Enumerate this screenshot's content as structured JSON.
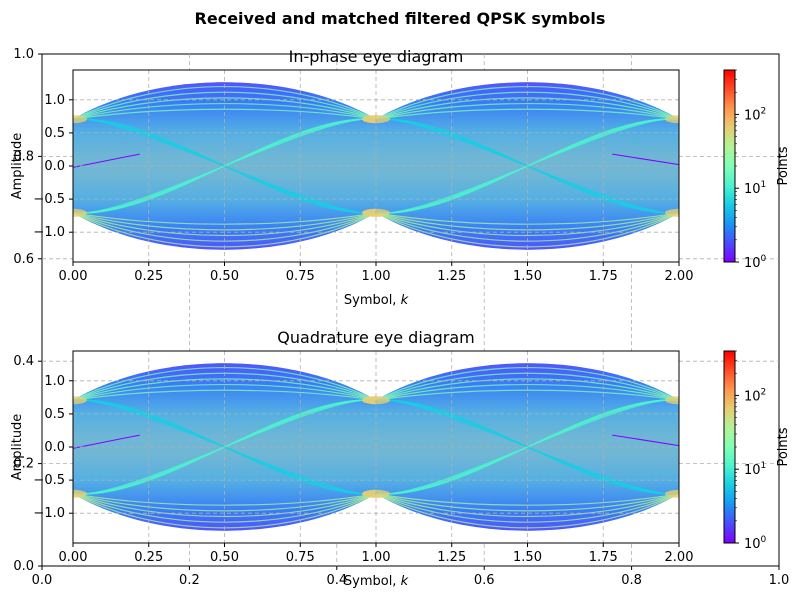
{
  "figure_title": "Received and matched filtered QPSK symbols",
  "colors": {
    "grid": "#b0b0b0",
    "colormap": [
      "#7f00ff",
      "#4b4bfd",
      "#1996f3",
      "#18cde4",
      "#4df3ce",
      "#80ffb4",
      "#b2f396",
      "#e6cd73",
      "#ff964f",
      "#ff4b27",
      "#ff0000"
    ]
  },
  "background_axes": {
    "x_ticks": [
      "0.0",
      "0.2",
      "0.4",
      "0.6",
      "0.8",
      "1.0"
    ],
    "y_ticks": [
      "0.0",
      "0.2",
      "0.4",
      "0.6",
      "0.8",
      "1.0"
    ],
    "grid": "on"
  },
  "colorbar": {
    "label": "Points",
    "scale": "log",
    "tick_base": "10",
    "tick_exponents": [
      "0",
      "1",
      "2"
    ]
  },
  "chart_data": [
    {
      "type": "heatmap",
      "title": "In-phase eye diagram",
      "xlabel": "Symbol, k",
      "ylabel": "Amplitude",
      "xlim": [
        0,
        2
      ],
      "ylim": [
        -1.45,
        1.45
      ],
      "x_ticks": [
        "0.00",
        "0.25",
        "0.50",
        "0.75",
        "1.00",
        "1.25",
        "1.50",
        "1.75",
        "2.00"
      ],
      "y_ticks": [
        "-1.0",
        "-0.5",
        "0.0",
        "0.5",
        "1.0"
      ],
      "symbol_levels": [
        0.707,
        -0.707
      ],
      "peak_amplitude": 1.45,
      "colorbar_range": [
        1,
        400
      ],
      "colorbar_label": "Points",
      "grid": "on"
    },
    {
      "type": "heatmap",
      "title": "Quadrature eye diagram",
      "xlabel": "Symbol, k",
      "ylabel": "Amplitude",
      "xlim": [
        0,
        2
      ],
      "ylim": [
        -1.45,
        1.45
      ],
      "x_ticks": [
        "0.00",
        "0.25",
        "0.50",
        "0.75",
        "1.00",
        "1.25",
        "1.50",
        "1.75",
        "2.00"
      ],
      "y_ticks": [
        "-1.0",
        "-0.5",
        "0.0",
        "0.5",
        "1.0"
      ],
      "symbol_levels": [
        0.707,
        -0.707
      ],
      "peak_amplitude": 1.45,
      "colorbar_range": [
        1,
        400
      ],
      "colorbar_label": "Points",
      "grid": "on"
    }
  ]
}
